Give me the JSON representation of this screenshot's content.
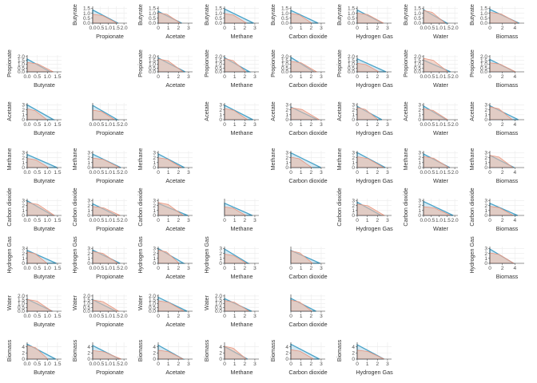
{
  "chart_data": {
    "type": "area",
    "layout": "pairwise-matrix",
    "grid": true,
    "colors": {
      "line": "#4aa3c8",
      "fill_light": "#cfe6f1",
      "overlay_line": "#e8957f",
      "overlay_fill": "#e9b9a7",
      "grid": "#ebebeb",
      "axis": "#333333"
    },
    "variables": [
      "Butyrate",
      "Propionate",
      "Acetate",
      "Methane",
      "Carbon dioxide",
      "Hydrogen Gas",
      "Water",
      "Biomass"
    ],
    "ticks": {
      "Butyrate": [
        "0.0",
        "0.5",
        "1.0",
        "1.5"
      ],
      "Propionate": [
        "0.0",
        "0.5",
        "1.0",
        "1.5",
        "2.0"
      ],
      "Acetate": [
        "0",
        "1",
        "2",
        "3"
      ],
      "Methane": [
        "0",
        "1",
        "2",
        "3"
      ],
      "Carbon dioxide": [
        "0",
        "1",
        "2",
        "3"
      ],
      "Hydrogen Gas": [
        "0",
        "1",
        "2",
        "3"
      ],
      "Water": [
        "0.0",
        "0.5",
        "1.0",
        "1.5",
        "2.0"
      ],
      "Biomass": [
        "0",
        "2",
        "4"
      ]
    },
    "ranges": {
      "Butyrate": [
        0,
        1.7
      ],
      "Propionate": [
        0,
        2.2
      ],
      "Acetate": [
        0,
        3.4
      ],
      "Methane": [
        0,
        3.4
      ],
      "Carbon dioxide": [
        0,
        3.4
      ],
      "Hydrogen Gas": [
        0,
        3.4
      ],
      "Water": [
        0,
        2.2
      ],
      "Biomass": [
        0,
        5.5
      ]
    },
    "empty_cells": [
      [
        0,
        0
      ],
      [
        1,
        1
      ],
      [
        2,
        2
      ],
      [
        3,
        3
      ],
      [
        4,
        4
      ],
      [
        5,
        5
      ],
      [
        6,
        6
      ],
      [
        7,
        7
      ],
      [
        5,
        6
      ],
      [
        6,
        5
      ],
      [
        6,
        7
      ],
      [
        7,
        6
      ]
    ],
    "no_y_axis_cells": [
      [
        2,
        1
      ],
      [
        4,
        3
      ],
      [
        5,
        4
      ],
      [
        6,
        4
      ]
    ],
    "footer": {
      "Butyrate": [
        [
          0,
          1.55
        ],
        [
          0,
          1.2
        ]
      ],
      "Propionate": [
        [
          0,
          2.0
        ],
        [
          0,
          1.75
        ]
      ],
      "Acetate": [
        [
          0,
          3.0
        ],
        [
          0,
          2.4
        ]
      ],
      "Methane": [
        [
          0,
          3.0
        ],
        [
          0,
          2.45
        ]
      ],
      "Carbon dioxide": [
        [
          0,
          3.3
        ],
        [
          0,
          3.1
        ]
      ],
      "Hydrogen Gas": [
        [
          0,
          2.6
        ],
        [
          0,
          2.1
        ]
      ],
      "Water": [
        [
          0,
          2.1
        ],
        [
          0,
          1.8
        ]
      ],
      "Biomass": [
        [
          0,
          5.2
        ],
        [
          0,
          4.6
        ]
      ]
    }
  }
}
